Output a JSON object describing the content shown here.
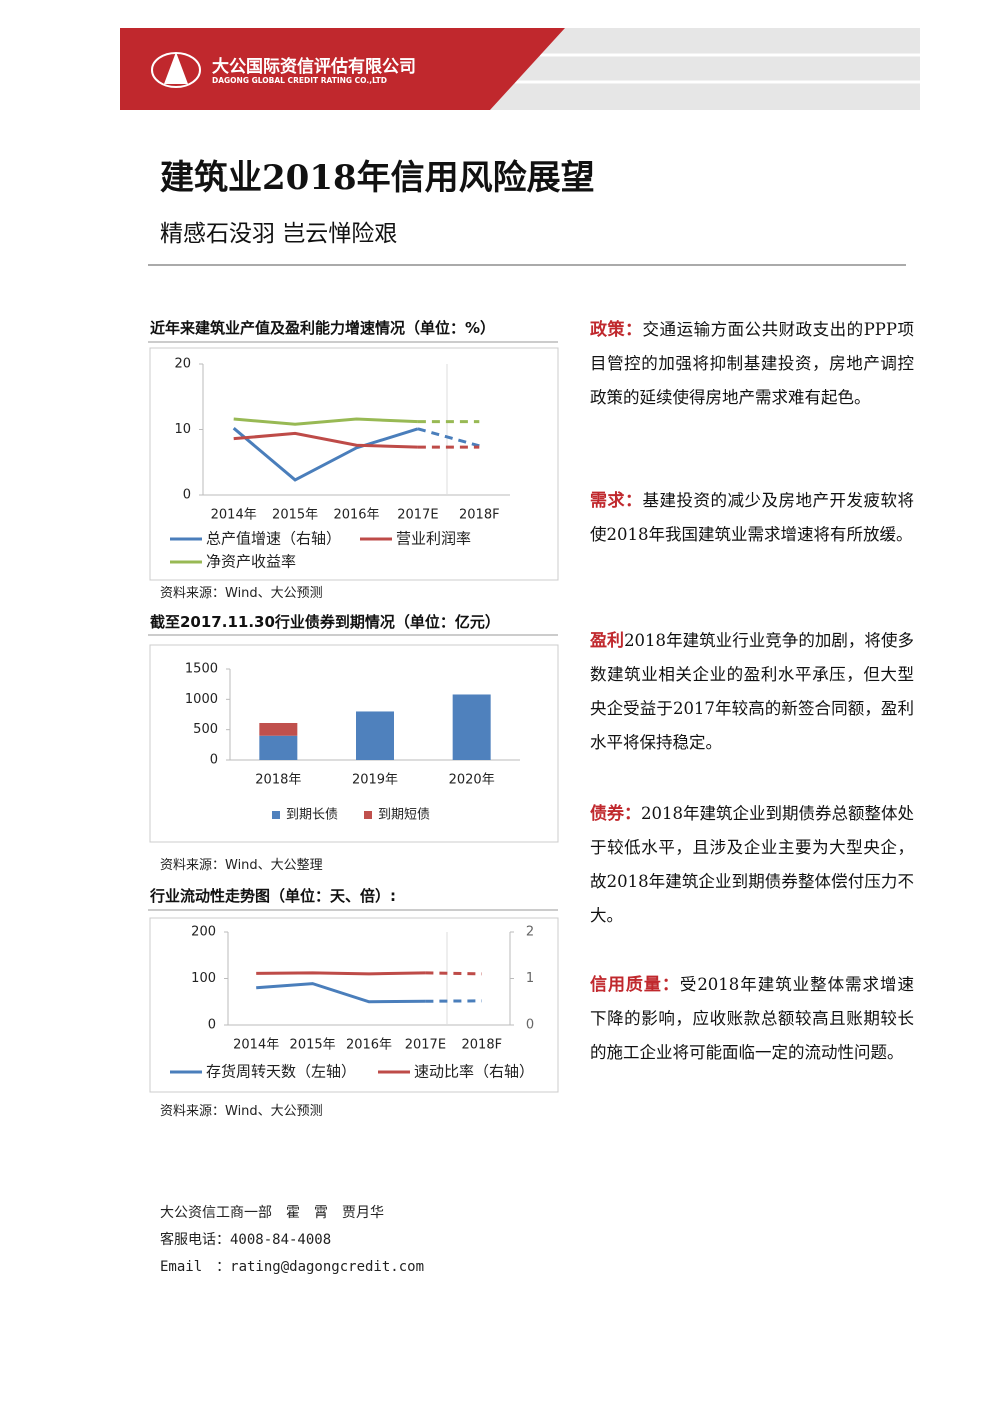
{
  "header": {
    "company": "大公国际资信评估有限公司",
    "company_en": "DAGONG GLOBAL CREDIT RATING CO.,LTD"
  },
  "title": "建筑业2018年信用风险展望",
  "subtitle": "精感石没羽 岂云惮险艰",
  "chart_data": [
    {
      "type": "line",
      "title": "近年来建筑业产值及盈利能力增速情况（单位：%）",
      "categories": [
        "2014年",
        "2015年",
        "2016年",
        "2017E",
        "2018F"
      ],
      "ylim": [
        0,
        20
      ],
      "yticks": [
        0,
        10,
        20
      ],
      "grid": false,
      "dash_from_index": 3,
      "series": [
        {
          "name": "总产值增速（右轴）",
          "color": "#4a7ebb",
          "values": [
            10.2,
            2.3,
            7.2,
            10.1,
            7.5
          ]
        },
        {
          "name": "营业利润率",
          "color": "#be4b48",
          "values": [
            8.6,
            9.4,
            7.6,
            7.3,
            7.3
          ]
        },
        {
          "name": "净资产收益率",
          "color": "#98b954",
          "values": [
            11.6,
            10.8,
            11.6,
            11.2,
            11.2
          ]
        }
      ],
      "source": "资料来源：Wind、大公预测"
    },
    {
      "type": "bar",
      "stacked": true,
      "title": "截至2017.11.30行业债券到期情况（单位：亿元）",
      "categories": [
        "2018年",
        "2019年",
        "2020年"
      ],
      "ylim": [
        0,
        1500
      ],
      "yticks": [
        0,
        500,
        1000,
        1500
      ],
      "grid": false,
      "series": [
        {
          "name": "到期长债",
          "color": "#4f81bd",
          "values": [
            400,
            800,
            1080
          ]
        },
        {
          "name": "到期短债",
          "color": "#c0504d",
          "values": [
            210,
            0,
            0
          ]
        }
      ],
      "source": "资料来源：Wind、大公整理"
    },
    {
      "type": "line",
      "title": "行业流动性走势图（单位：天、倍）:",
      "categories": [
        "2014年",
        "2015年",
        "2016年",
        "2017E",
        "2018F"
      ],
      "ylim": [
        0,
        200
      ],
      "yticks": [
        0,
        100,
        200
      ],
      "y2lim": [
        0,
        2
      ],
      "y2ticks": [
        0,
        1,
        2
      ],
      "grid": false,
      "dash_from_index": 3,
      "series": [
        {
          "name": "存货周转天数（左轴）",
          "color": "#4a7ebb",
          "values": [
            80,
            89,
            50,
            51,
            52
          ]
        },
        {
          "name": "速动比率（右轴）",
          "color": "#be4b48",
          "axis": "y2",
          "values": [
            1.11,
            1.12,
            1.1,
            1.12,
            1.1
          ]
        }
      ],
      "source": "资料来源：Wind、大公预测"
    }
  ],
  "sections": [
    {
      "heading": "政策：",
      "text": "交通运输方面公共财政支出的PPP项目管控的加强将抑制基建投资，房地产调控政策的延续使得房地产需求难有起色。"
    },
    {
      "heading": "需求：",
      "text": "基建投资的减少及房地产开发疲软将使2018年我国建筑业需求增速将有所放缓。"
    },
    {
      "heading": "盈利",
      "text": "2018年建筑业行业竞争的加剧，将使多数建筑业相关企业的盈利水平承压，但大型央企受益于2017年较高的新签合同额，盈利水平将保持稳定。"
    },
    {
      "heading": "债券：",
      "text": "2018年建筑企业到期债券总额整体处于较低水平，且涉及企业主要为大型央企，故2018年建筑企业到期债券整体偿付压力不大。"
    },
    {
      "heading": "信用质量：",
      "text": "受2018年建筑业整体需求增速下降的影响，应收账款总额较高且账期较长的施工企业将可能面临一定的流动性问题。"
    }
  ],
  "footer": {
    "authors": "大公资信工商一部　霍　霄　贾月华",
    "phone": "客服电话：4008-84-4008",
    "email": "Email　：rating@dagongcredit.com"
  }
}
